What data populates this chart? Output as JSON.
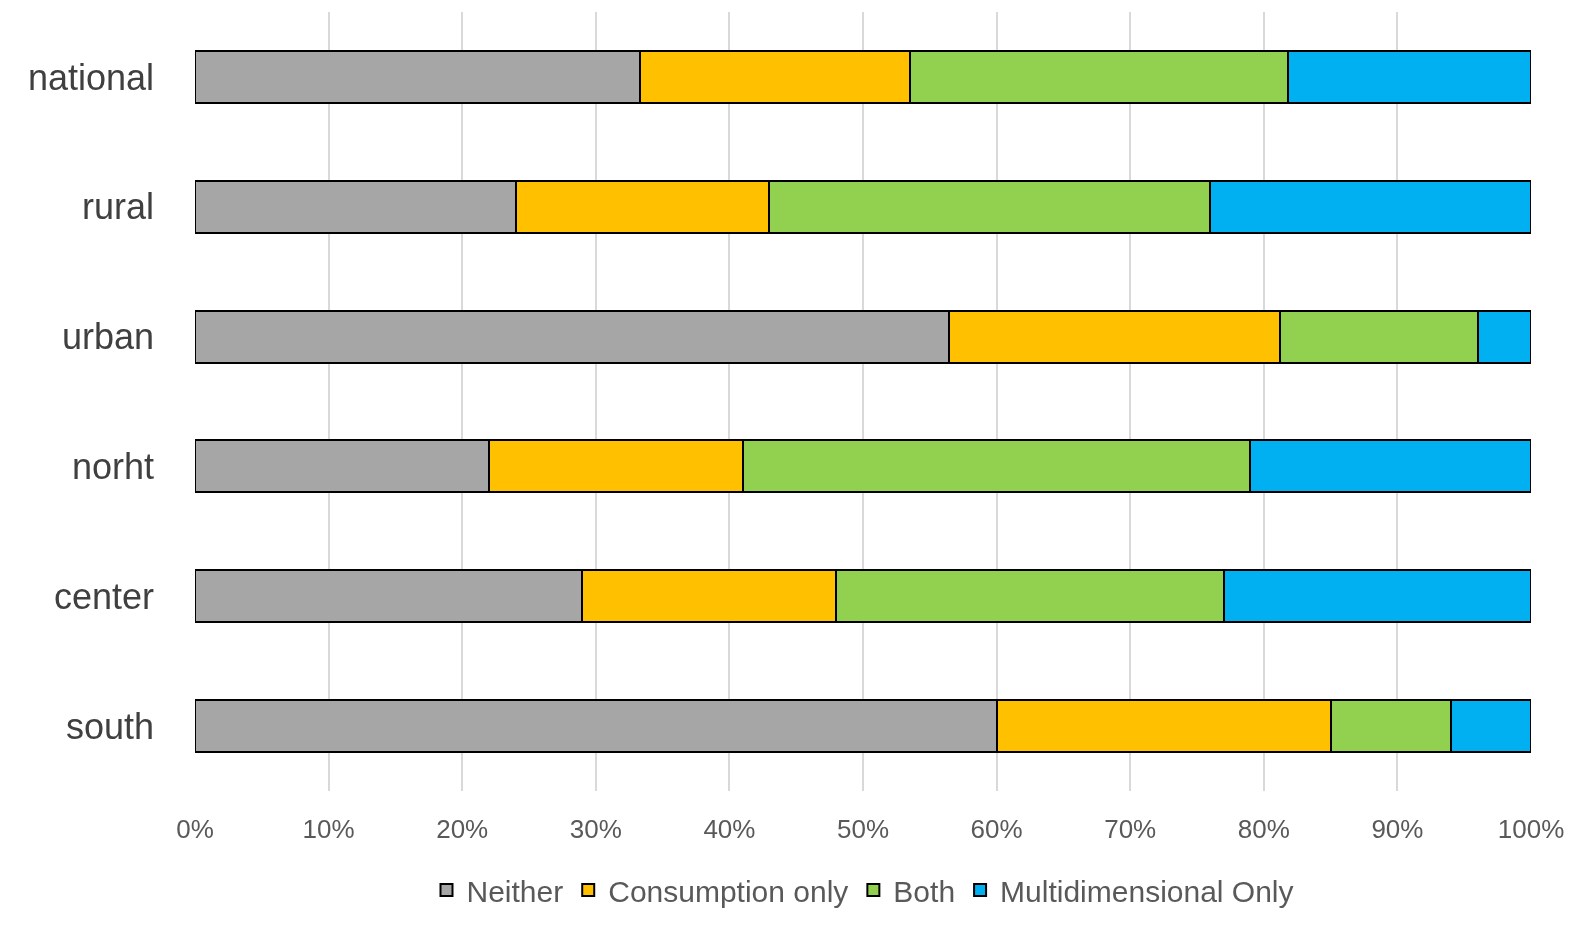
{
  "chart_data": {
    "type": "bar",
    "orientation": "horizontal",
    "stacked": true,
    "categories": [
      "national",
      "rural",
      "urban",
      "norht",
      "center",
      "south"
    ],
    "series": [
      {
        "name": "Neither",
        "color": "#a6a6a6",
        "values": [
          33.3,
          24.0,
          56.4,
          22.0,
          29.0,
          60.0
        ]
      },
      {
        "name": "Consumption only",
        "color": "#ffc000",
        "values": [
          20.2,
          19.0,
          24.8,
          19.0,
          19.0,
          25.0
        ]
      },
      {
        "name": "Both",
        "color": "#92d050",
        "values": [
          28.3,
          33.0,
          14.8,
          38.0,
          29.0,
          9.0
        ]
      },
      {
        "name": "Multidimensional Only",
        "color": "#00b0f0",
        "values": [
          18.2,
          24.0,
          4.0,
          21.0,
          23.0,
          6.0
        ]
      }
    ],
    "xlim": [
      0,
      100
    ],
    "xticks": [
      {
        "value": 0,
        "label": "0%"
      },
      {
        "value": 10,
        "label": "10%"
      },
      {
        "value": 20,
        "label": "20%"
      },
      {
        "value": 30,
        "label": "30%"
      },
      {
        "value": 40,
        "label": "40%"
      },
      {
        "value": 50,
        "label": "50%"
      },
      {
        "value": 60,
        "label": "60%"
      },
      {
        "value": 70,
        "label": "70%"
      },
      {
        "value": 80,
        "label": "80%"
      },
      {
        "value": 90,
        "label": "90%"
      },
      {
        "value": 100,
        "label": "100%"
      }
    ],
    "grid": "x",
    "legend": "bottom"
  }
}
